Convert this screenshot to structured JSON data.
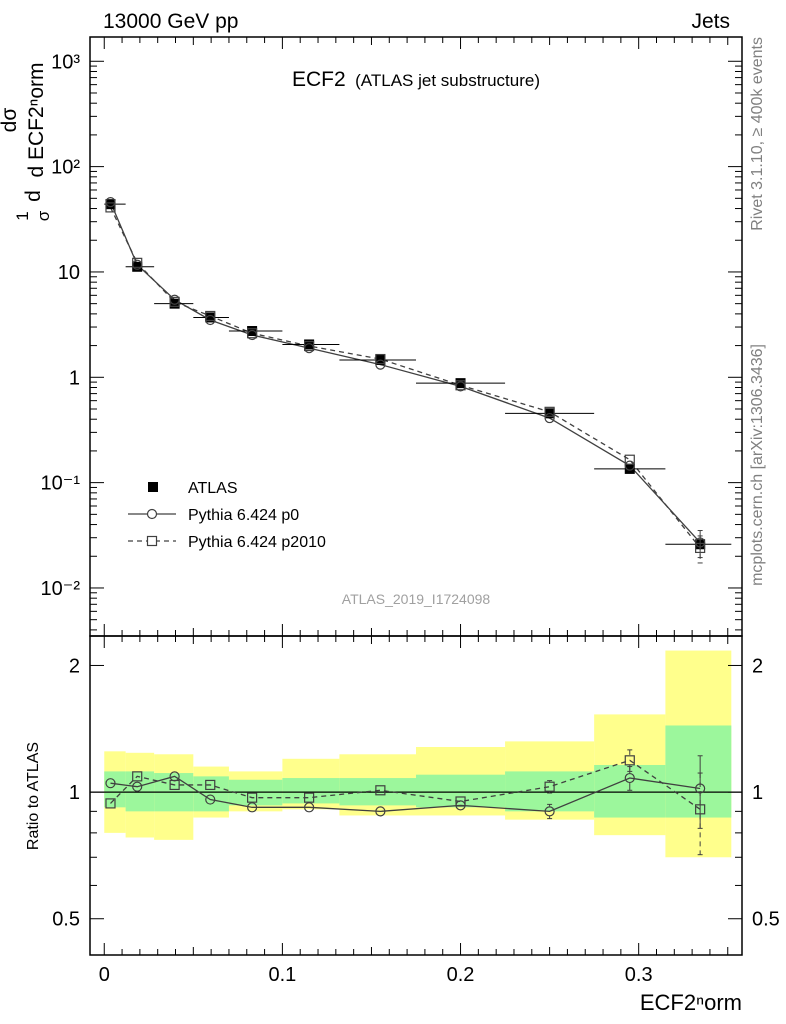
{
  "header": {
    "left": "13000 GeV pp",
    "right": "Jets",
    "title_main": "ECF2",
    "title_sub": "(ATLAS jet substructure)",
    "side_top": "Rivet 3.1.10, ≥ 400k events",
    "side_bottom": "mcplots.cern.ch [arXiv:1306.3436]",
    "analysis_id": "ATLAS_2019_I1724098"
  },
  "axes": {
    "xlabel": "ECF2ⁿorm",
    "ylabel_top": "d¹/σ dσ/d ECF2ⁿorm",
    "ylabel_top_pre": "1",
    "ylabel_top_sigma": "σ",
    "ylabel_top_d": "d",
    "ylabel_top_num": "dσ",
    "ylabel_top_den": "d ECF2ⁿorm",
    "ylabel_bottom": "Ratio to ATLAS",
    "x_ticks": [
      "0",
      "0.1",
      "0.2",
      "0.3"
    ],
    "y_ticks_top": [
      "10⁻²",
      "10⁻¹",
      "1",
      "10",
      "10²",
      "10³"
    ],
    "y_ticks_bottom": [
      "0.5",
      "1",
      "2"
    ]
  },
  "legend": {
    "placement": "left-middle",
    "entries": [
      "ATLAS",
      "Pythia 6.424 p0",
      "Pythia 6.424 p2010"
    ]
  },
  "chart_data": [
    {
      "type": "scatter",
      "panel": "main",
      "yscale": "log",
      "xlim": [
        -0.008,
        0.358
      ],
      "ylim": [
        0.0035,
        1700
      ],
      "x": [
        0.0035,
        0.0185,
        0.0395,
        0.0595,
        0.083,
        0.115,
        0.155,
        0.2,
        0.25,
        0.295,
        0.3345
      ],
      "x_bin_edges": [
        0.0,
        0.012,
        0.028,
        0.05,
        0.07,
        0.1,
        0.132,
        0.175,
        0.225,
        0.275,
        0.315,
        0.352
      ],
      "series": [
        {
          "name": "ATLAS",
          "values": [
            44,
            11.2,
            5.0,
            3.7,
            2.75,
            2.05,
            1.46,
            0.88,
            0.455,
            0.135,
            0.026
          ]
        },
        {
          "name": "Pythia 6.424 p0",
          "values": [
            46,
            11.7,
            5.45,
            3.5,
            2.52,
            1.89,
            1.32,
            0.82,
            0.41,
            0.145,
            0.027
          ]
        },
        {
          "name": "Pythia 6.424 p2010",
          "values": [
            41,
            12.2,
            5.2,
            3.82,
            2.62,
            1.98,
            1.49,
            0.84,
            0.47,
            0.165,
            0.024
          ]
        }
      ]
    },
    {
      "type": "line",
      "panel": "ratio",
      "yscale": "log",
      "xlim": [
        -0.008,
        0.358
      ],
      "ylim": [
        0.41,
        2.35
      ],
      "x": [
        0.0035,
        0.0185,
        0.0395,
        0.0595,
        0.083,
        0.115,
        0.155,
        0.2,
        0.25,
        0.295,
        0.3345
      ],
      "x_bin_edges": [
        0.0,
        0.012,
        0.028,
        0.05,
        0.07,
        0.1,
        0.132,
        0.175,
        0.225,
        0.275,
        0.315,
        0.352
      ],
      "band_inner": {
        "low": [
          0.92,
          0.9,
          0.9,
          0.9,
          0.93,
          0.94,
          0.93,
          0.92,
          0.9,
          0.87,
          0.87
        ],
        "high": [
          1.12,
          1.12,
          1.11,
          1.09,
          1.07,
          1.08,
          1.08,
          1.1,
          1.12,
          1.16,
          1.44
        ]
      },
      "band_outer": {
        "low": [
          0.8,
          0.78,
          0.77,
          0.87,
          0.9,
          0.91,
          0.88,
          0.88,
          0.86,
          0.79,
          0.7
        ],
        "high": [
          1.25,
          1.24,
          1.23,
          1.15,
          1.12,
          1.2,
          1.23,
          1.28,
          1.32,
          1.53,
          2.17
        ]
      },
      "series": [
        {
          "name": "Pythia 6.424 p0",
          "values": [
            1.05,
            1.03,
            1.09,
            0.96,
            0.92,
            0.92,
            0.9,
            0.93,
            0.9,
            1.08,
            1.02
          ],
          "errors": [
            0.01,
            0.01,
            0.02,
            0.01,
            0.015,
            0.015,
            0.02,
            0.025,
            0.035,
            0.07,
            0.2
          ]
        },
        {
          "name": "Pythia 6.424 p2010",
          "values": [
            0.94,
            1.09,
            1.04,
            1.04,
            0.97,
            0.97,
            1.01,
            0.95,
            1.03,
            1.19,
            0.91
          ],
          "errors": [
            0.01,
            0.01,
            0.02,
            0.01,
            0.015,
            0.015,
            0.02,
            0.025,
            0.035,
            0.07,
            0.2
          ]
        }
      ]
    }
  ]
}
